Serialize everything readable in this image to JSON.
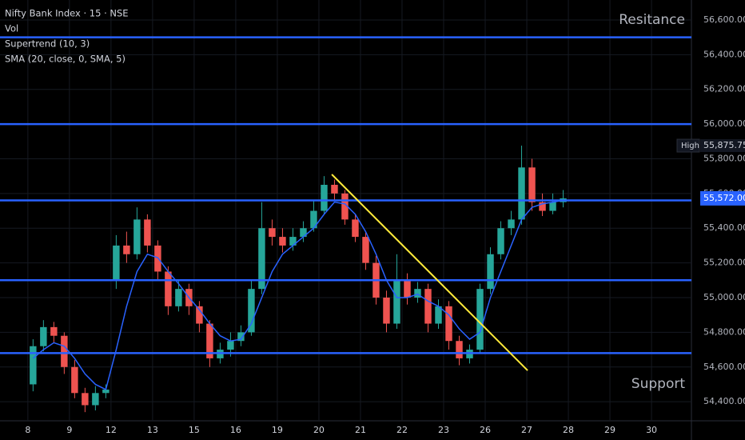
{
  "chart_data": {
    "type": "candlestick",
    "title": "Nifty Bank Index · 15 · NSE",
    "indicators": [
      {
        "name": "Vol"
      },
      {
        "name": "Supertrend (10, 3)"
      },
      {
        "name": "SMA (20, close, 0, SMA, 5)",
        "color": "#2962ff",
        "values": [
          54650,
          54700,
          54740,
          54720,
          54650,
          54560,
          54500,
          54470,
          54700,
          54950,
          55150,
          55250,
          55230,
          55150,
          55080,
          55000,
          54930,
          54850,
          54780,
          54750,
          54760,
          54850,
          55000,
          55150,
          55250,
          55300,
          55350,
          55400,
          55480,
          55550,
          55540,
          55480,
          55380,
          55250,
          55100,
          55000,
          55000,
          55020,
          54980,
          54950,
          54900,
          54820,
          54760,
          54800,
          55000,
          55150,
          55300,
          55450,
          55520,
          55540,
          55550,
          55560
        ]
      }
    ],
    "x": [
      0.125,
      0.375,
      0.625,
      0.875,
      1.125,
      1.375,
      1.625,
      1.875,
      2.125,
      2.375,
      2.625,
      2.875,
      3.125,
      3.375,
      3.625,
      3.875,
      4.125,
      4.375,
      4.625,
      4.875,
      5.125,
      5.375,
      5.625,
      5.875,
      6.125,
      6.375,
      6.625,
      6.875,
      7.125,
      7.375,
      7.625,
      7.875,
      8.125,
      8.375,
      8.625,
      8.875,
      9.125,
      9.375,
      9.625,
      9.875,
      10.125,
      10.375,
      10.625,
      10.875,
      11.125,
      11.375,
      11.625,
      11.875,
      12.125,
      12.375,
      12.625,
      12.875
    ],
    "open": [
      54500,
      54720,
      54830,
      54780,
      54600,
      54450,
      54380,
      54450,
      55100,
      55300,
      55250,
      55450,
      55300,
      55150,
      54950,
      55050,
      54950,
      54850,
      54650,
      54700,
      54750,
      54800,
      55050,
      55400,
      55350,
      55300,
      55350,
      55400,
      55500,
      55650,
      55600,
      55450,
      55350,
      55200,
      55000,
      54850,
      55100,
      55000,
      55050,
      54850,
      54950,
      54750,
      54650,
      54700,
      55050,
      55250,
      55400,
      55450,
      55750,
      55550,
      55500,
      55550
    ],
    "high": [
      54760,
      54870,
      54860,
      54800,
      54640,
      54480,
      54490,
      54500,
      55360,
      55380,
      55520,
      55480,
      55330,
      55180,
      55100,
      55080,
      54980,
      54870,
      54740,
      54800,
      54840,
      55100,
      55550,
      55450,
      55400,
      55400,
      55440,
      55560,
      55700,
      55680,
      55620,
      55480,
      55380,
      55240,
      55040,
      55250,
      55140,
      55090,
      55080,
      54990,
      54980,
      54780,
      54730,
      55080,
      55290,
      55440,
      55500,
      55875.75,
      55800,
      55600,
      55600,
      55620
    ],
    "low": [
      54460,
      54690,
      54740,
      54560,
      54420,
      54340,
      54350,
      54420,
      55050,
      55200,
      55220,
      55260,
      55100,
      54900,
      54920,
      54900,
      54800,
      54600,
      54620,
      54660,
      54720,
      54780,
      55020,
      55300,
      55260,
      55270,
      55320,
      55380,
      55480,
      55560,
      55420,
      55320,
      55160,
      54960,
      54800,
      54820,
      54960,
      54970,
      54800,
      54820,
      54700,
      54610,
      54620,
      54680,
      55020,
      55220,
      55360,
      55420,
      55500,
      55470,
      55480,
      55520
    ],
    "close": [
      54720,
      54830,
      54780,
      54600,
      54450,
      54380,
      54450,
      54470,
      55300,
      55250,
      55450,
      55300,
      55150,
      54950,
      55050,
      54950,
      54850,
      54650,
      54700,
      54750,
      54800,
      55050,
      55400,
      55350,
      55300,
      55350,
      55400,
      55500,
      55650,
      55600,
      55450,
      55350,
      55200,
      55000,
      54850,
      55100,
      55000,
      55050,
      54850,
      54950,
      54750,
      54650,
      54700,
      55050,
      55250,
      55400,
      55450,
      55750,
      55550,
      55500,
      55550,
      55572
    ],
    "up_color": "#26a69a",
    "down_color": "#ef5350",
    "xlim": [
      -0.67,
      15.96
    ],
    "xticks": [
      {
        "value": 0,
        "label": "8"
      },
      {
        "value": 1,
        "label": "9"
      },
      {
        "value": 2,
        "label": "12"
      },
      {
        "value": 3,
        "label": "13"
      },
      {
        "value": 4,
        "label": "15"
      },
      {
        "value": 5,
        "label": "16"
      },
      {
        "value": 6,
        "label": "19"
      },
      {
        "value": 7,
        "label": "20"
      },
      {
        "value": 8,
        "label": "21"
      },
      {
        "value": 9,
        "label": "22"
      },
      {
        "value": 10,
        "label": "23"
      },
      {
        "value": 11,
        "label": "26"
      },
      {
        "value": 12,
        "label": "27"
      },
      {
        "value": 13,
        "label": "28"
      },
      {
        "value": 14,
        "label": "29"
      },
      {
        "value": 15,
        "label": "30"
      }
    ],
    "ylim": [
      54290,
      56715
    ],
    "yticks": [
      {
        "value": 54400,
        "label": "54,400.00"
      },
      {
        "value": 54600,
        "label": "54,600.00"
      },
      {
        "value": 54800,
        "label": "54,800.00"
      },
      {
        "value": 55000,
        "label": "55,000.00"
      },
      {
        "value": 55200,
        "label": "55,200.00"
      },
      {
        "value": 55400,
        "label": "55,400.00"
      },
      {
        "value": 55600,
        "label": "55,600.00"
      },
      {
        "value": 55800,
        "label": "55,800.00"
      },
      {
        "value": 56000,
        "label": "56,000.00"
      },
      {
        "value": 56200,
        "label": "56,200.00"
      },
      {
        "value": 56400,
        "label": "56,400.00"
      },
      {
        "value": 56600,
        "label": "56,600.00"
      }
    ],
    "grid": true,
    "levels": [
      56500,
      56000,
      55560,
      55100,
      54680
    ],
    "level_color": "#2962ff",
    "trendline": {
      "x": [
        7.31,
        12.02
      ],
      "values": [
        55710,
        54580
      ],
      "color": "#ffeb3b"
    },
    "high_tag": {
      "text": "High",
      "value": 55875.75,
      "label": "55,875.75"
    },
    "last_price": {
      "value": 55572,
      "label": "55,572.00"
    },
    "annotations": [
      {
        "text": "Resitance",
        "color": "#f23645"
      },
      {
        "text": "Support",
        "color": "#4caf50"
      }
    ]
  }
}
